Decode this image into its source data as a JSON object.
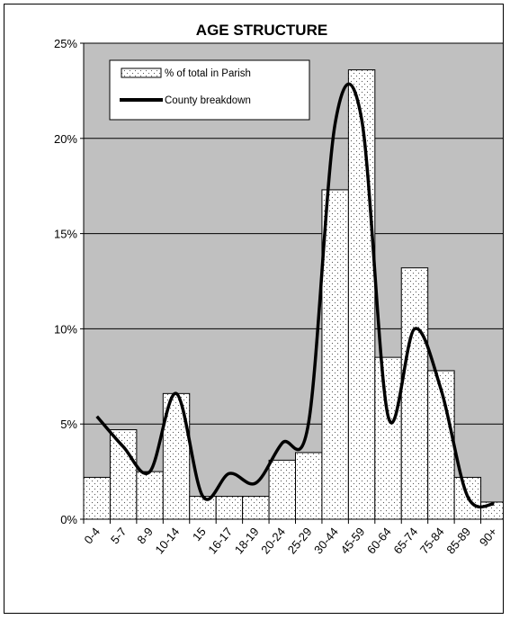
{
  "chart_data": {
    "type": "bar",
    "title": "AGE STRUCTURE",
    "xlabel": "",
    "ylabel": "",
    "ylim": [
      0,
      25
    ],
    "y_ticks": [
      "0%",
      "5%",
      "10%",
      "15%",
      "20%",
      "25%"
    ],
    "y_tick_values": [
      0,
      5,
      10,
      15,
      20,
      25
    ],
    "grid": true,
    "legend_position": "top-left",
    "categories": [
      "0-4",
      "5-7",
      "8-9",
      "10-14",
      "15",
      "16-17",
      "18-19",
      "20-24",
      "25-29",
      "30-44",
      "45-59",
      "60-64",
      "65-74",
      "75-84",
      "85-89",
      "90+"
    ],
    "series": [
      {
        "name": "% of total in Parish",
        "type": "bar",
        "values": [
          2.2,
          4.7,
          2.5,
          6.6,
          1.2,
          1.2,
          1.2,
          3.1,
          3.5,
          17.3,
          23.6,
          8.5,
          13.2,
          7.8,
          2.2,
          0.9
        ]
      },
      {
        "name": "County breakdown",
        "type": "line",
        "values": [
          5.4,
          3.8,
          2.5,
          6.6,
          1.2,
          2.4,
          1.9,
          4.0,
          5.1,
          20.8,
          21.0,
          5.4,
          10.0,
          6.8,
          1.2,
          0.8
        ]
      }
    ],
    "colors": {
      "plot_background": "#c0c0c0",
      "bar_fill": "#ffffff",
      "bar_stroke": "#000000",
      "line": "#000000",
      "gridline": "#000000"
    }
  }
}
